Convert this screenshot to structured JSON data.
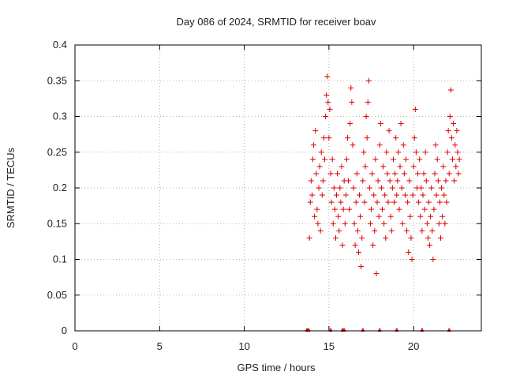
{
  "chart_data": {
    "type": "scatter",
    "title": "Day 086 of 2024, SRMTID for receiver boav",
    "xlabel": "GPS time / hours",
    "ylabel": "SRMTID / TECUs",
    "xlim": [
      0,
      24
    ],
    "ylim": [
      0,
      0.4
    ],
    "xticks": [
      0,
      5,
      10,
      15,
      20
    ],
    "xtick_labels": [
      "0",
      "5",
      "10",
      "15",
      "20"
    ],
    "yticks": [
      0,
      0.05,
      0.1,
      0.15,
      0.2,
      0.25,
      0.3,
      0.35,
      0.4
    ],
    "ytick_labels": [
      "0",
      "0.05",
      "0.1",
      "0.15",
      "0.2",
      "0.25",
      "0.3",
      "0.35",
      "0.4"
    ],
    "grid": true,
    "marker": "+",
    "color": "#dd0000",
    "series": [
      {
        "name": "SRMTID",
        "points": [
          [
            13.85,
            0.13
          ],
          [
            13.9,
            0.18
          ],
          [
            13.95,
            0.21
          ],
          [
            14.0,
            0.19
          ],
          [
            14.05,
            0.24
          ],
          [
            14.1,
            0.26
          ],
          [
            14.15,
            0.16
          ],
          [
            14.2,
            0.28
          ],
          [
            14.25,
            0.22
          ],
          [
            14.3,
            0.17
          ],
          [
            14.35,
            0.15
          ],
          [
            14.4,
            0.2
          ],
          [
            14.45,
            0.23
          ],
          [
            14.5,
            0.14
          ],
          [
            14.55,
            0.25
          ],
          [
            14.6,
            0.19
          ],
          [
            14.65,
            0.21
          ],
          [
            14.7,
            0.27
          ],
          [
            14.75,
            0.24
          ],
          [
            14.8,
            0.3
          ],
          [
            14.85,
            0.33
          ],
          [
            14.9,
            0.356
          ],
          [
            14.95,
            0.32
          ],
          [
            15.0,
            0.27
          ],
          [
            15.05,
            0.31
          ],
          [
            15.1,
            0.22
          ],
          [
            15.15,
            0.18
          ],
          [
            15.2,
            0.24
          ],
          [
            15.25,
            0.15
          ],
          [
            15.3,
            0.2
          ],
          [
            15.35,
            0.17
          ],
          [
            15.4,
            0.13
          ],
          [
            15.45,
            0.19
          ],
          [
            15.5,
            0.22
          ],
          [
            15.55,
            0.16
          ],
          [
            15.6,
            0.14
          ],
          [
            15.65,
            0.2
          ],
          [
            15.7,
            0.18
          ],
          [
            15.75,
            0.23
          ],
          [
            15.8,
            0.12
          ],
          [
            15.85,
            0.17
          ],
          [
            15.9,
            0.21
          ],
          [
            15.95,
            0.15
          ],
          [
            16.0,
            0.19
          ],
          [
            16.05,
            0.24
          ],
          [
            16.1,
            0.27
          ],
          [
            16.15,
            0.21
          ],
          [
            16.2,
            0.17
          ],
          [
            16.25,
            0.29
          ],
          [
            16.3,
            0.34
          ],
          [
            16.35,
            0.32
          ],
          [
            16.4,
            0.26
          ],
          [
            16.45,
            0.2
          ],
          [
            16.5,
            0.15
          ],
          [
            16.55,
            0.12
          ],
          [
            16.6,
            0.18
          ],
          [
            16.65,
            0.22
          ],
          [
            16.7,
            0.14
          ],
          [
            16.75,
            0.11
          ],
          [
            16.8,
            0.19
          ],
          [
            16.85,
            0.16
          ],
          [
            16.9,
            0.09
          ],
          [
            16.95,
            0.13
          ],
          [
            17.0,
            0.21
          ],
          [
            17.05,
            0.25
          ],
          [
            17.1,
            0.18
          ],
          [
            17.15,
            0.23
          ],
          [
            17.2,
            0.3
          ],
          [
            17.25,
            0.27
          ],
          [
            17.3,
            0.32
          ],
          [
            17.35,
            0.35
          ],
          [
            17.4,
            0.2
          ],
          [
            17.45,
            0.15
          ],
          [
            17.5,
            0.17
          ],
          [
            17.55,
            0.22
          ],
          [
            17.6,
            0.12
          ],
          [
            17.65,
            0.19
          ],
          [
            17.7,
            0.14
          ],
          [
            17.75,
            0.24
          ],
          [
            17.8,
            0.08
          ],
          [
            17.85,
            0.18
          ],
          [
            17.9,
            0.21
          ],
          [
            17.95,
            0.16
          ],
          [
            18.0,
            0.26
          ],
          [
            18.05,
            0.29
          ],
          [
            18.1,
            0.2
          ],
          [
            18.15,
            0.17
          ],
          [
            18.2,
            0.23
          ],
          [
            18.25,
            0.15
          ],
          [
            18.3,
            0.19
          ],
          [
            18.35,
            0.13
          ],
          [
            18.4,
            0.25
          ],
          [
            18.45,
            0.22
          ],
          [
            18.5,
            0.18
          ],
          [
            18.55,
            0.28
          ],
          [
            18.6,
            0.21
          ],
          [
            18.65,
            0.16
          ],
          [
            18.7,
            0.14
          ],
          [
            18.75,
            0.2
          ],
          [
            18.8,
            0.24
          ],
          [
            18.85,
            0.18
          ],
          [
            18.9,
            0.22
          ],
          [
            18.95,
            0.27
          ],
          [
            19.0,
            0.19
          ],
          [
            19.05,
            0.21
          ],
          [
            19.1,
            0.25
          ],
          [
            19.15,
            0.17
          ],
          [
            19.2,
            0.23
          ],
          [
            19.25,
            0.29
          ],
          [
            19.3,
            0.2
          ],
          [
            19.35,
            0.15
          ],
          [
            19.4,
            0.26
          ],
          [
            19.45,
            0.22
          ],
          [
            19.5,
            0.19
          ],
          [
            19.55,
            0.24
          ],
          [
            19.6,
            0.14
          ],
          [
            19.65,
            0.18
          ],
          [
            19.7,
            0.11
          ],
          [
            19.75,
            0.21
          ],
          [
            19.8,
            0.16
          ],
          [
            19.85,
            0.13
          ],
          [
            19.9,
            0.1
          ],
          [
            19.95,
            0.19
          ],
          [
            20.0,
            0.23
          ],
          [
            20.05,
            0.27
          ],
          [
            20.1,
            0.31
          ],
          [
            20.15,
            0.25
          ],
          [
            20.2,
            0.2
          ],
          [
            20.25,
            0.22
          ],
          [
            20.3,
            0.18
          ],
          [
            20.35,
            0.24
          ],
          [
            20.4,
            0.16
          ],
          [
            20.45,
            0.2
          ],
          [
            20.5,
            0.14
          ],
          [
            20.55,
            0.19
          ],
          [
            20.6,
            0.22
          ],
          [
            20.65,
            0.17
          ],
          [
            20.7,
            0.25
          ],
          [
            20.75,
            0.21
          ],
          [
            20.8,
            0.15
          ],
          [
            20.85,
            0.13
          ],
          [
            20.9,
            0.18
          ],
          [
            20.95,
            0.12
          ],
          [
            21.0,
            0.16
          ],
          [
            21.05,
            0.2
          ],
          [
            21.1,
            0.14
          ],
          [
            21.15,
            0.1
          ],
          [
            21.2,
            0.17
          ],
          [
            21.25,
            0.22
          ],
          [
            21.3,
            0.26
          ],
          [
            21.35,
            0.19
          ],
          [
            21.4,
            0.24
          ],
          [
            21.45,
            0.21
          ],
          [
            21.5,
            0.15
          ],
          [
            21.55,
            0.18
          ],
          [
            21.6,
            0.13
          ],
          [
            21.65,
            0.2
          ],
          [
            21.7,
            0.16
          ],
          [
            21.75,
            0.23
          ],
          [
            21.8,
            0.19
          ],
          [
            21.85,
            0.15
          ],
          [
            21.9,
            0.21
          ],
          [
            21.95,
            0.18
          ],
          [
            22.0,
            0.25
          ],
          [
            22.05,
            0.28
          ],
          [
            22.1,
            0.22
          ],
          [
            22.15,
            0.3
          ],
          [
            22.2,
            0.337
          ],
          [
            22.25,
            0.27
          ],
          [
            22.3,
            0.24
          ],
          [
            22.35,
            0.29
          ],
          [
            22.4,
            0.21
          ],
          [
            22.45,
            0.26
          ],
          [
            22.5,
            0.23
          ],
          [
            22.55,
            0.28
          ],
          [
            22.6,
            0.25
          ],
          [
            22.65,
            0.22
          ],
          [
            22.7,
            0.24
          ]
        ]
      }
    ],
    "zero_marks_x": [
      13.7,
      13.8,
      15.1,
      15.8,
      15.9,
      17.0,
      18.0,
      19.0,
      20.5,
      22.1
    ]
  }
}
